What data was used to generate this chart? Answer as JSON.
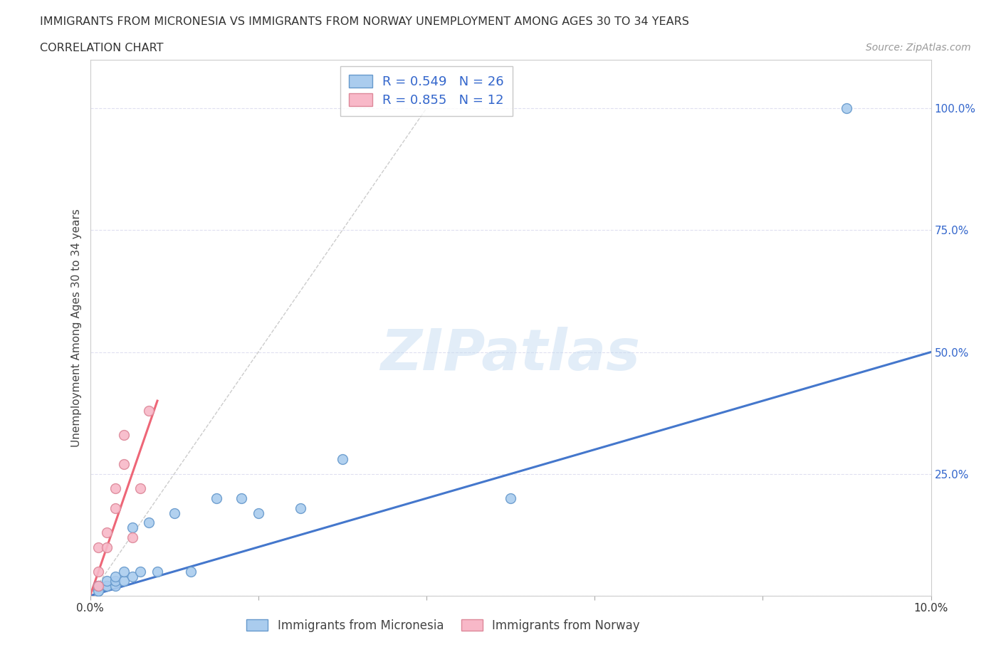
{
  "title_line1": "IMMIGRANTS FROM MICRONESIA VS IMMIGRANTS FROM NORWAY UNEMPLOYMENT AMONG AGES 30 TO 34 YEARS",
  "title_line2": "CORRELATION CHART",
  "source_text": "Source: ZipAtlas.com",
  "ylabel": "Unemployment Among Ages 30 to 34 years",
  "watermark": "ZIPatlas",
  "xlim": [
    0.0,
    0.1
  ],
  "ylim": [
    0.0,
    1.1
  ],
  "micronesia_color": "#aaccee",
  "micronesia_edge_color": "#6699cc",
  "norway_color": "#f8b8c8",
  "norway_edge_color": "#dd8899",
  "micronesia_R": 0.549,
  "micronesia_N": 26,
  "norway_R": 0.855,
  "norway_N": 12,
  "legend_R_color": "#3366cc",
  "trend_micronesia_color": "#4477cc",
  "trend_norway_color": "#ee6677",
  "diagonal_color": "#cccccc",
  "micronesia_x": [
    0.001,
    0.001,
    0.001,
    0.001,
    0.002,
    0.002,
    0.002,
    0.003,
    0.003,
    0.003,
    0.004,
    0.004,
    0.005,
    0.005,
    0.006,
    0.007,
    0.008,
    0.01,
    0.012,
    0.015,
    0.018,
    0.02,
    0.025,
    0.03,
    0.05,
    0.09
  ],
  "micronesia_y": [
    0.01,
    0.01,
    0.02,
    0.02,
    0.02,
    0.02,
    0.03,
    0.02,
    0.03,
    0.04,
    0.03,
    0.05,
    0.04,
    0.14,
    0.05,
    0.15,
    0.05,
    0.17,
    0.05,
    0.2,
    0.2,
    0.17,
    0.18,
    0.28,
    0.2,
    1.0
  ],
  "norway_x": [
    0.001,
    0.001,
    0.001,
    0.002,
    0.002,
    0.003,
    0.003,
    0.004,
    0.004,
    0.005,
    0.006,
    0.007
  ],
  "norway_y": [
    0.02,
    0.05,
    0.1,
    0.1,
    0.13,
    0.18,
    0.22,
    0.27,
    0.33,
    0.12,
    0.22,
    0.38
  ],
  "background_color": "#ffffff",
  "plot_bg_color": "#ffffff",
  "grid_color": "#e0e0f0",
  "title_color": "#333333",
  "axis_color": "#444444",
  "tick_color_y": "#3366cc",
  "tick_color_x": "#333333"
}
